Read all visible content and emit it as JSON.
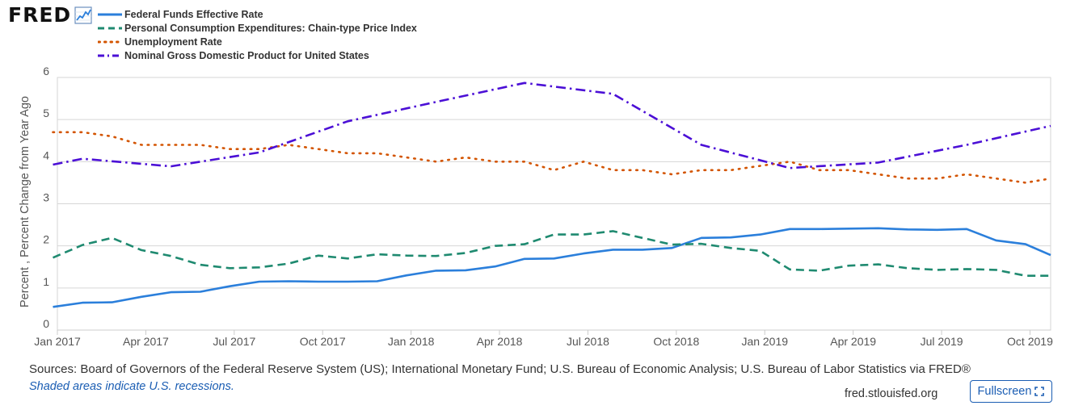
{
  "header": {
    "logo_text": "FRED"
  },
  "chart_data": {
    "type": "line",
    "ylabel": "Percent , Percent Change from Year Ago",
    "xlabel": "",
    "ylim": [
      0,
      6
    ],
    "yticks": [
      0,
      1,
      2,
      3,
      4,
      5,
      6
    ],
    "xlim": [
      0,
      33.7
    ],
    "x_tick_labels": [
      {
        "label": "Jan 2017",
        "x": 0
      },
      {
        "label": "Apr 2017",
        "x": 3
      },
      {
        "label": "Jul 2017",
        "x": 6
      },
      {
        "label": "Oct 2017",
        "x": 9
      },
      {
        "label": "Jan 2018",
        "x": 12
      },
      {
        "label": "Apr 2018",
        "x": 15
      },
      {
        "label": "Jul 2018",
        "x": 18
      },
      {
        "label": "Oct 2018",
        "x": 21
      },
      {
        "label": "Jan 2019",
        "x": 24
      },
      {
        "label": "Apr 2019",
        "x": 27
      },
      {
        "label": "Jul 2019",
        "x": 30
      },
      {
        "label": "Oct 2019",
        "x": 33
      }
    ],
    "series": [
      {
        "name": "Federal Funds Effective Rate",
        "color": "#2b7fdb",
        "dash": "solid",
        "x": [
          -0.15,
          0.85,
          1.85,
          2.85,
          3.85,
          4.85,
          5.85,
          6.85,
          7.85,
          8.85,
          9.85,
          10.85,
          11.85,
          12.85,
          13.85,
          14.85,
          15.85,
          16.85,
          17.85,
          18.85,
          19.85,
          20.85,
          21.85,
          22.85,
          23.85,
          24.85,
          25.85,
          26.85,
          27.85,
          28.85,
          29.85,
          30.85,
          31.85,
          32.85,
          33.7
        ],
        "values": [
          0.55,
          0.65,
          0.66,
          0.79,
          0.9,
          0.91,
          1.04,
          1.15,
          1.16,
          1.15,
          1.15,
          1.16,
          1.3,
          1.41,
          1.42,
          1.51,
          1.69,
          1.7,
          1.82,
          1.91,
          1.91,
          1.95,
          2.19,
          2.2,
          2.27,
          2.4,
          2.4,
          2.41,
          2.42,
          2.39,
          2.38,
          2.4,
          2.13,
          2.04,
          1.78
        ]
      },
      {
        "name": "Personal Consumption Expenditures: Chain-type Price Index",
        "color": "#1f8a70",
        "dash": "dashed",
        "x": [
          -0.15,
          0.85,
          1.85,
          2.85,
          3.85,
          4.85,
          5.85,
          6.85,
          7.85,
          8.85,
          9.85,
          10.85,
          11.85,
          12.85,
          13.85,
          14.85,
          15.85,
          16.85,
          17.85,
          18.85,
          19.85,
          20.85,
          21.85,
          22.85,
          23.85,
          24.85,
          25.85,
          26.85,
          27.85,
          28.85,
          29.85,
          30.85,
          31.85,
          32.85,
          33.7
        ],
        "values": [
          1.72,
          2.02,
          2.19,
          1.9,
          1.76,
          1.55,
          1.47,
          1.49,
          1.58,
          1.77,
          1.7,
          1.8,
          1.77,
          1.76,
          1.83,
          2.0,
          2.04,
          2.27,
          2.27,
          2.35,
          2.19,
          2.03,
          2.05,
          1.95,
          1.88,
          1.44,
          1.41,
          1.53,
          1.56,
          1.47,
          1.43,
          1.45,
          1.43,
          1.29,
          1.29
        ]
      },
      {
        "name": "Unemployment Rate",
        "color": "#d35400",
        "dash": "dotted",
        "x": [
          -0.15,
          0.85,
          1.85,
          2.85,
          3.85,
          4.85,
          5.85,
          6.85,
          7.85,
          8.85,
          9.85,
          10.85,
          11.85,
          12.85,
          13.85,
          14.85,
          15.85,
          16.85,
          17.85,
          18.85,
          19.85,
          20.85,
          21.85,
          22.85,
          23.85,
          24.85,
          25.85,
          26.85,
          27.85,
          28.85,
          29.85,
          30.85,
          31.85,
          32.85,
          33.7
        ],
        "values": [
          4.7,
          4.7,
          4.6,
          4.4,
          4.4,
          4.4,
          4.3,
          4.3,
          4.4,
          4.3,
          4.2,
          4.2,
          4.1,
          4.0,
          4.1,
          4.0,
          4.0,
          3.8,
          4.0,
          3.8,
          3.8,
          3.7,
          3.8,
          3.8,
          3.9,
          4.0,
          3.8,
          3.8,
          3.7,
          3.6,
          3.6,
          3.7,
          3.6,
          3.5,
          3.6
        ]
      },
      {
        "name": "Nominal Gross Domestic Product for United States",
        "color": "#4b0fd6",
        "dash": "dashdot",
        "x": [
          -0.15,
          0.85,
          3.85,
          6.85,
          9.85,
          12.85,
          15.85,
          18.85,
          21.85,
          24.85,
          27.85,
          30.85,
          33.7
        ],
        "values": [
          3.93,
          4.07,
          3.89,
          4.22,
          4.96,
          5.42,
          5.87,
          5.61,
          4.4,
          3.85,
          3.98,
          4.4,
          4.85
        ]
      }
    ]
  },
  "footer": {
    "sources": "Sources: Board of Governors of the Federal Reserve System (US); International Monetary Fund; U.S. Bureau of Economic Analysis; U.S. Bureau of Labor Statistics via FRED®",
    "recession_note": "Shaded areas indicate U.S. recessions.",
    "site": "fred.stlouisfed.org",
    "fullscreen_label": "Fullscreen"
  }
}
